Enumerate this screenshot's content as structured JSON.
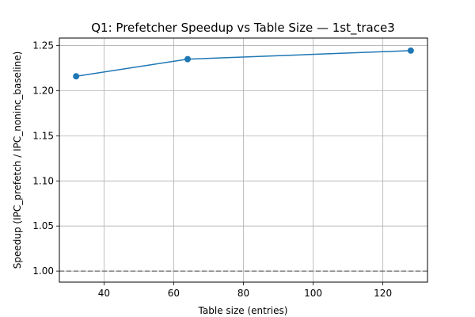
{
  "chart_data": {
    "type": "line",
    "title": "Q1: Prefetcher Speedup vs Table Size — 1st_trace3",
    "xlabel": "Table size (entries)",
    "ylabel": "Speedup (IPC_prefetch / IPC_noninc_baseline)",
    "xlim": [
      27.2,
      132.8
    ],
    "ylim": [
      0.9878,
      1.2584
    ],
    "xticks": [
      40,
      60,
      80,
      100,
      120
    ],
    "yticks": [
      1.0,
      1.05,
      1.1,
      1.15,
      1.2,
      1.25
    ],
    "ytick_labels": [
      "1.00",
      "1.05",
      "1.10",
      "1.15",
      "1.20",
      "1.25"
    ],
    "grid": true,
    "series": [
      {
        "x": [
          32,
          64,
          128
        ],
        "y": [
          1.216,
          1.235,
          1.2445
        ],
        "color": "#1f77b4",
        "marker": "circle"
      }
    ],
    "reference_line": {
      "y": 1.0,
      "style": "dashed",
      "color": "#808080"
    }
  }
}
